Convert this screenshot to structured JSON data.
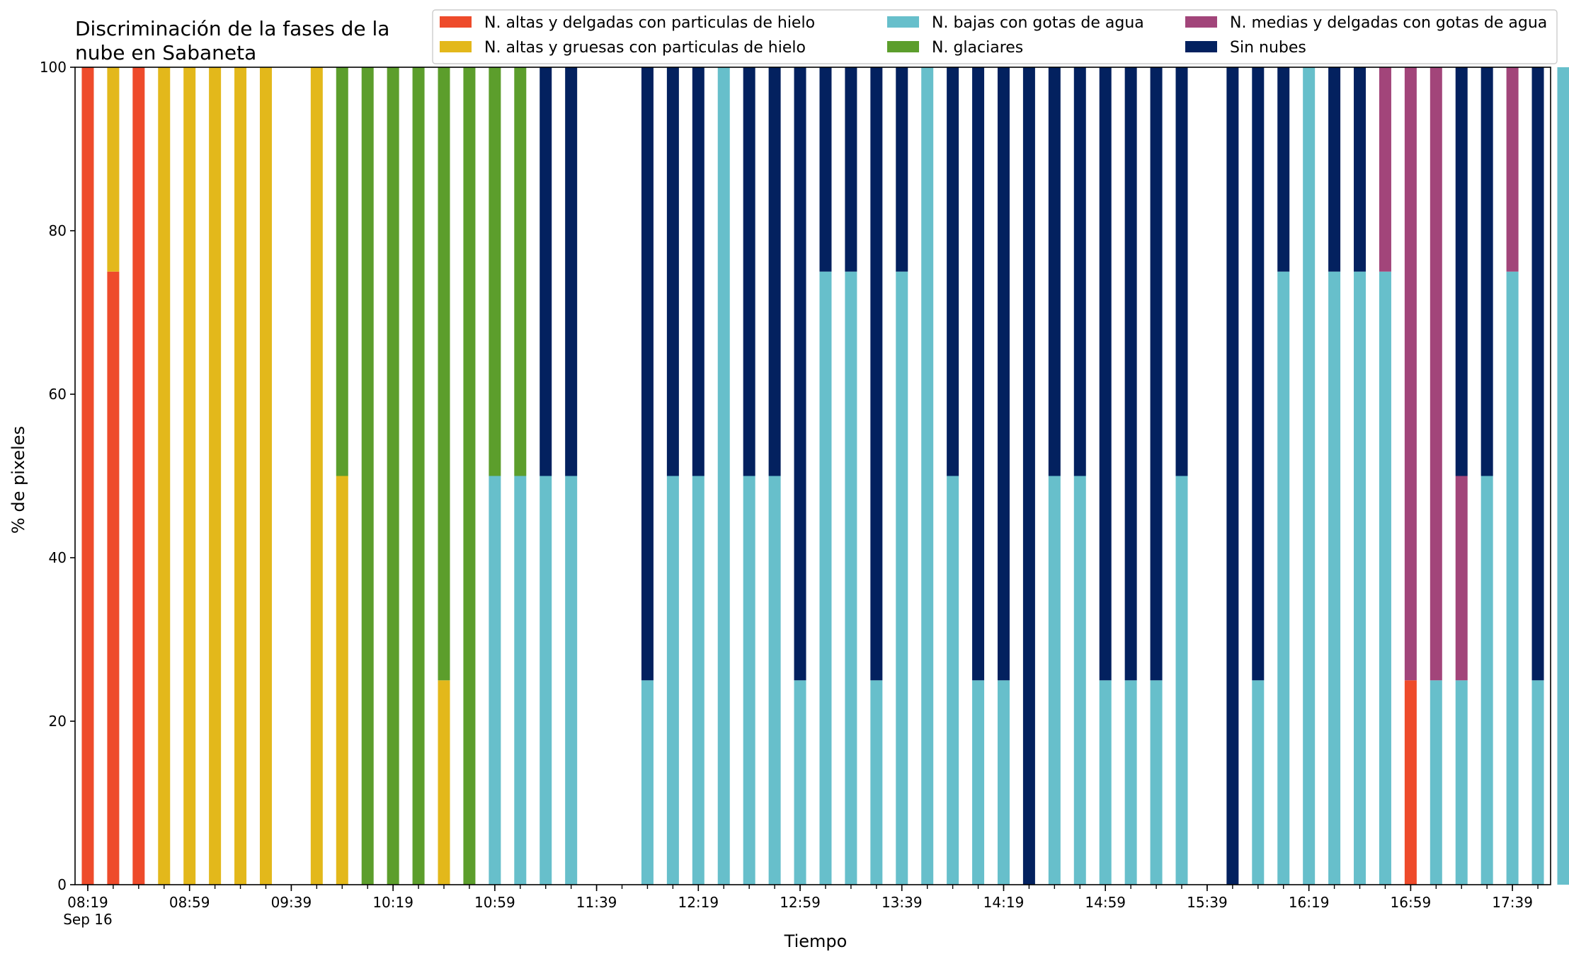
{
  "chart_data": {
    "type": "bar",
    "stacked": true,
    "title_lines": [
      "Discriminación de la fases de la",
      "nube en Sabaneta"
    ],
    "xlabel": "Tiempo",
    "ylabel": "% de pixeles",
    "ylim": [
      0,
      100
    ],
    "yticks": [
      0,
      20,
      40,
      60,
      80,
      100
    ],
    "x_range_minutes": [
      "08:14",
      "17:54"
    ],
    "x_tick_interval_minutes": 10,
    "x_tick_labels": [
      {
        "time": "08:19",
        "label": "08:19",
        "sublabel": "Sep 16"
      },
      {
        "time": "08:59",
        "label": "08:59"
      },
      {
        "time": "09:39",
        "label": "09:39"
      },
      {
        "time": "10:19",
        "label": "10:19"
      },
      {
        "time": "10:59",
        "label": "10:59"
      },
      {
        "time": "11:39",
        "label": "11:39"
      },
      {
        "time": "12:19",
        "label": "12:19"
      },
      {
        "time": "12:59",
        "label": "12:59"
      },
      {
        "time": "13:39",
        "label": "13:39"
      },
      {
        "time": "14:19",
        "label": "14:19"
      },
      {
        "time": "14:59",
        "label": "14:59"
      },
      {
        "time": "15:39",
        "label": "15:39"
      },
      {
        "time": "16:19",
        "label": "16:19"
      },
      {
        "time": "16:59",
        "label": "16:59"
      },
      {
        "time": "17:39",
        "label": "17:39"
      }
    ],
    "legend_position": "top",
    "series": [
      {
        "name": "N. altas y delgadas con particulas de hielo",
        "color": "#ee4b2b"
      },
      {
        "name": "N. altas y gruesas con particulas de hielo",
        "color": "#e3b81b"
      },
      {
        "name": "N. bajas con gotas de agua",
        "color": "#67bfcb"
      },
      {
        "name": "N. glaciares",
        "color": "#5c9e2c"
      },
      {
        "name": "N. medias y delgadas con gotas de agua",
        "color": "#a2457a"
      },
      {
        "name": "Sin nubes",
        "color": "#03215f"
      }
    ],
    "legend_order": [
      0,
      1,
      2,
      3,
      4,
      5
    ],
    "bars": [
      {
        "time": "08:19",
        "values": [
          100,
          0,
          0,
          0,
          0,
          0
        ]
      },
      {
        "time": "08:29",
        "values": [
          75,
          25,
          0,
          0,
          0,
          0
        ]
      },
      {
        "time": "08:39",
        "values": [
          100,
          0,
          0,
          0,
          0,
          0
        ]
      },
      {
        "time": "08:49",
        "values": [
          0,
          100,
          0,
          0,
          0,
          0
        ]
      },
      {
        "time": "08:59",
        "values": [
          0,
          100,
          0,
          0,
          0,
          0
        ]
      },
      {
        "time": "09:09",
        "values": [
          0,
          100,
          0,
          0,
          0,
          0
        ]
      },
      {
        "time": "09:19",
        "values": [
          0,
          100,
          0,
          0,
          0,
          0
        ]
      },
      {
        "time": "09:29",
        "values": [
          0,
          100,
          0,
          0,
          0,
          0
        ]
      },
      {
        "time": "09:49",
        "values": [
          0,
          100,
          0,
          0,
          0,
          0
        ]
      },
      {
        "time": "09:59",
        "values": [
          0,
          50,
          0,
          50,
          0,
          0
        ]
      },
      {
        "time": "10:09",
        "values": [
          0,
          0,
          0,
          100,
          0,
          0
        ]
      },
      {
        "time": "10:19",
        "values": [
          0,
          0,
          0,
          100,
          0,
          0
        ]
      },
      {
        "time": "10:29",
        "values": [
          0,
          0,
          0,
          100,
          0,
          0
        ]
      },
      {
        "time": "10:39",
        "values": [
          0,
          25,
          0,
          75,
          0,
          0
        ]
      },
      {
        "time": "10:49",
        "values": [
          0,
          0,
          0,
          100,
          0,
          0
        ]
      },
      {
        "time": "10:59",
        "values": [
          0,
          0,
          50,
          50,
          0,
          0
        ]
      },
      {
        "time": "11:09",
        "values": [
          0,
          0,
          50,
          50,
          0,
          0
        ]
      },
      {
        "time": "11:19",
        "values": [
          0,
          0,
          50,
          0,
          0,
          50
        ]
      },
      {
        "time": "11:29",
        "values": [
          0,
          0,
          50,
          0,
          0,
          50
        ]
      },
      {
        "time": "11:59",
        "values": [
          0,
          0,
          25,
          0,
          0,
          75
        ]
      },
      {
        "time": "12:09",
        "values": [
          0,
          0,
          50,
          0,
          0,
          50
        ]
      },
      {
        "time": "12:19",
        "values": [
          0,
          0,
          50,
          0,
          0,
          50
        ]
      },
      {
        "time": "12:29",
        "values": [
          0,
          0,
          100,
          0,
          0,
          0
        ]
      },
      {
        "time": "12:39",
        "values": [
          0,
          0,
          50,
          0,
          0,
          50
        ]
      },
      {
        "time": "12:49",
        "values": [
          0,
          0,
          50,
          0,
          0,
          50
        ]
      },
      {
        "time": "12:59",
        "values": [
          0,
          0,
          25,
          0,
          0,
          75
        ]
      },
      {
        "time": "13:09",
        "values": [
          0,
          0,
          75,
          0,
          0,
          25
        ]
      },
      {
        "time": "13:19",
        "values": [
          0,
          0,
          75,
          0,
          0,
          25
        ]
      },
      {
        "time": "13:29",
        "values": [
          0,
          0,
          25,
          0,
          0,
          75
        ]
      },
      {
        "time": "13:39",
        "values": [
          0,
          0,
          75,
          0,
          0,
          25
        ]
      },
      {
        "time": "13:49",
        "values": [
          0,
          0,
          100,
          0,
          0,
          0
        ]
      },
      {
        "time": "13:59",
        "values": [
          0,
          0,
          50,
          0,
          0,
          50
        ]
      },
      {
        "time": "14:09",
        "values": [
          0,
          0,
          25,
          0,
          0,
          75
        ]
      },
      {
        "time": "14:19",
        "values": [
          0,
          0,
          25,
          0,
          0,
          75
        ]
      },
      {
        "time": "14:29",
        "values": [
          0,
          0,
          0,
          0,
          0,
          100
        ]
      },
      {
        "time": "14:39",
        "values": [
          0,
          0,
          50,
          0,
          0,
          50
        ]
      },
      {
        "time": "14:49",
        "values": [
          0,
          0,
          50,
          0,
          0,
          50
        ]
      },
      {
        "time": "14:59",
        "values": [
          0,
          0,
          25,
          0,
          0,
          75
        ]
      },
      {
        "time": "15:09",
        "values": [
          0,
          0,
          25,
          0,
          0,
          75
        ]
      },
      {
        "time": "15:19",
        "values": [
          0,
          0,
          25,
          0,
          0,
          75
        ]
      },
      {
        "time": "15:29",
        "values": [
          0,
          0,
          50,
          0,
          0,
          50
        ]
      },
      {
        "time": "15:49",
        "values": [
          0,
          0,
          0,
          0,
          0,
          100
        ]
      },
      {
        "time": "15:59",
        "values": [
          0,
          0,
          25,
          0,
          0,
          75
        ]
      },
      {
        "time": "16:09",
        "values": [
          0,
          0,
          75,
          0,
          0,
          25
        ]
      },
      {
        "time": "16:19",
        "values": [
          0,
          0,
          100,
          0,
          0,
          0
        ]
      },
      {
        "time": "16:29",
        "values": [
          0,
          0,
          75,
          0,
          0,
          25
        ]
      },
      {
        "time": "16:39",
        "values": [
          0,
          0,
          75,
          0,
          0,
          25
        ]
      },
      {
        "time": "16:49",
        "values": [
          0,
          0,
          75,
          0,
          25,
          0
        ]
      },
      {
        "time": "16:59",
        "values": [
          25,
          0,
          0,
          0,
          75,
          0
        ]
      },
      {
        "time": "17:09",
        "values": [
          0,
          0,
          25,
          0,
          75,
          0
        ]
      },
      {
        "time": "17:19",
        "values": [
          0,
          0,
          25,
          0,
          25,
          50
        ]
      },
      {
        "time": "17:29",
        "values": [
          0,
          0,
          50,
          0,
          0,
          50
        ]
      },
      {
        "time": "17:39",
        "values": [
          0,
          0,
          75,
          0,
          25,
          0
        ]
      },
      {
        "time": "17:49",
        "values": [
          0,
          0,
          25,
          0,
          0,
          75
        ]
      },
      {
        "time": "17:59",
        "values": [
          0,
          0,
          100,
          0,
          0,
          0
        ]
      }
    ]
  }
}
